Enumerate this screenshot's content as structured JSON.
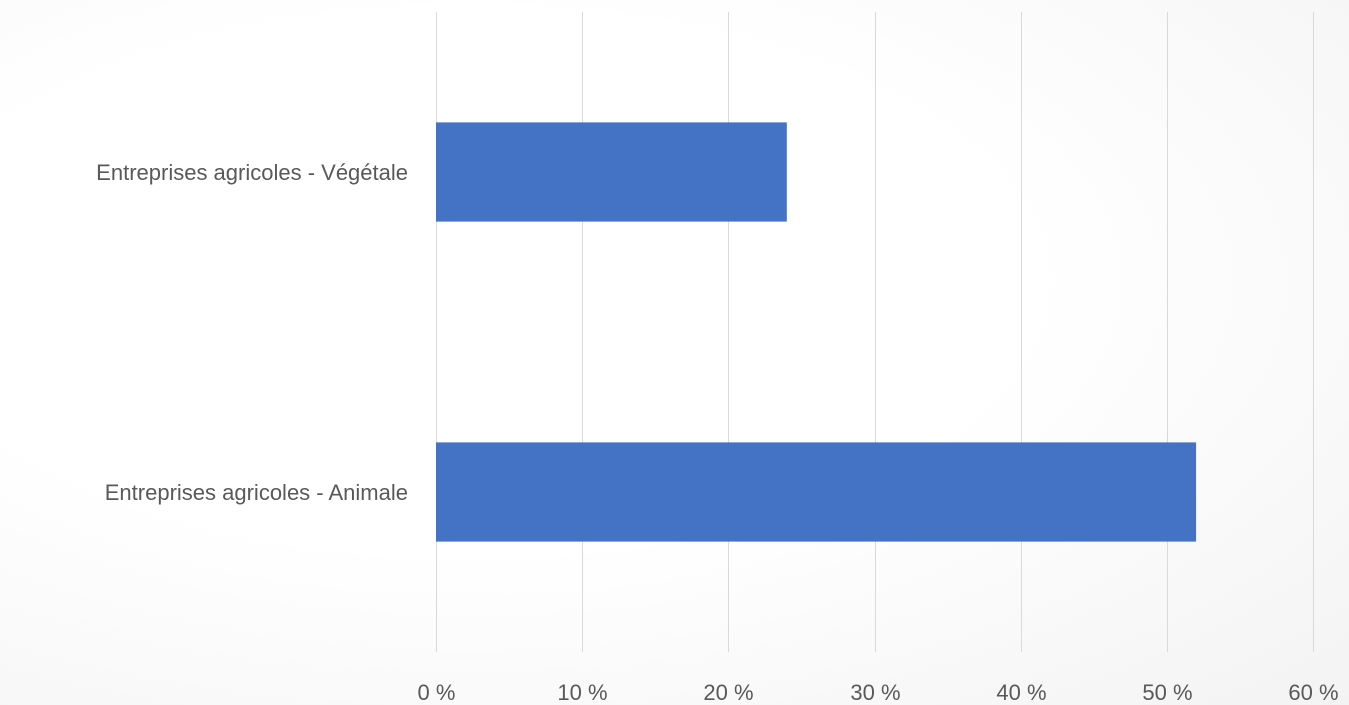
{
  "chart_data": {
    "type": "bar",
    "orientation": "horizontal",
    "categories": [
      "Entreprises agricoles - Végétale",
      "Entreprises agricoles - Animale"
    ],
    "series": [
      {
        "values": [
          24,
          52
        ]
      }
    ],
    "bar_color": "#4472c4",
    "xlim": [
      0,
      60
    ],
    "x_ticks": [
      0,
      10,
      20,
      30,
      40,
      50,
      60
    ],
    "x_tick_labels": [
      "0 %",
      "10 %",
      "20 %",
      "30 %",
      "40 %",
      "50 %",
      "60 %"
    ],
    "grid": "vertical",
    "legend": "none",
    "title": "",
    "xlabel": "",
    "ylabel": ""
  }
}
